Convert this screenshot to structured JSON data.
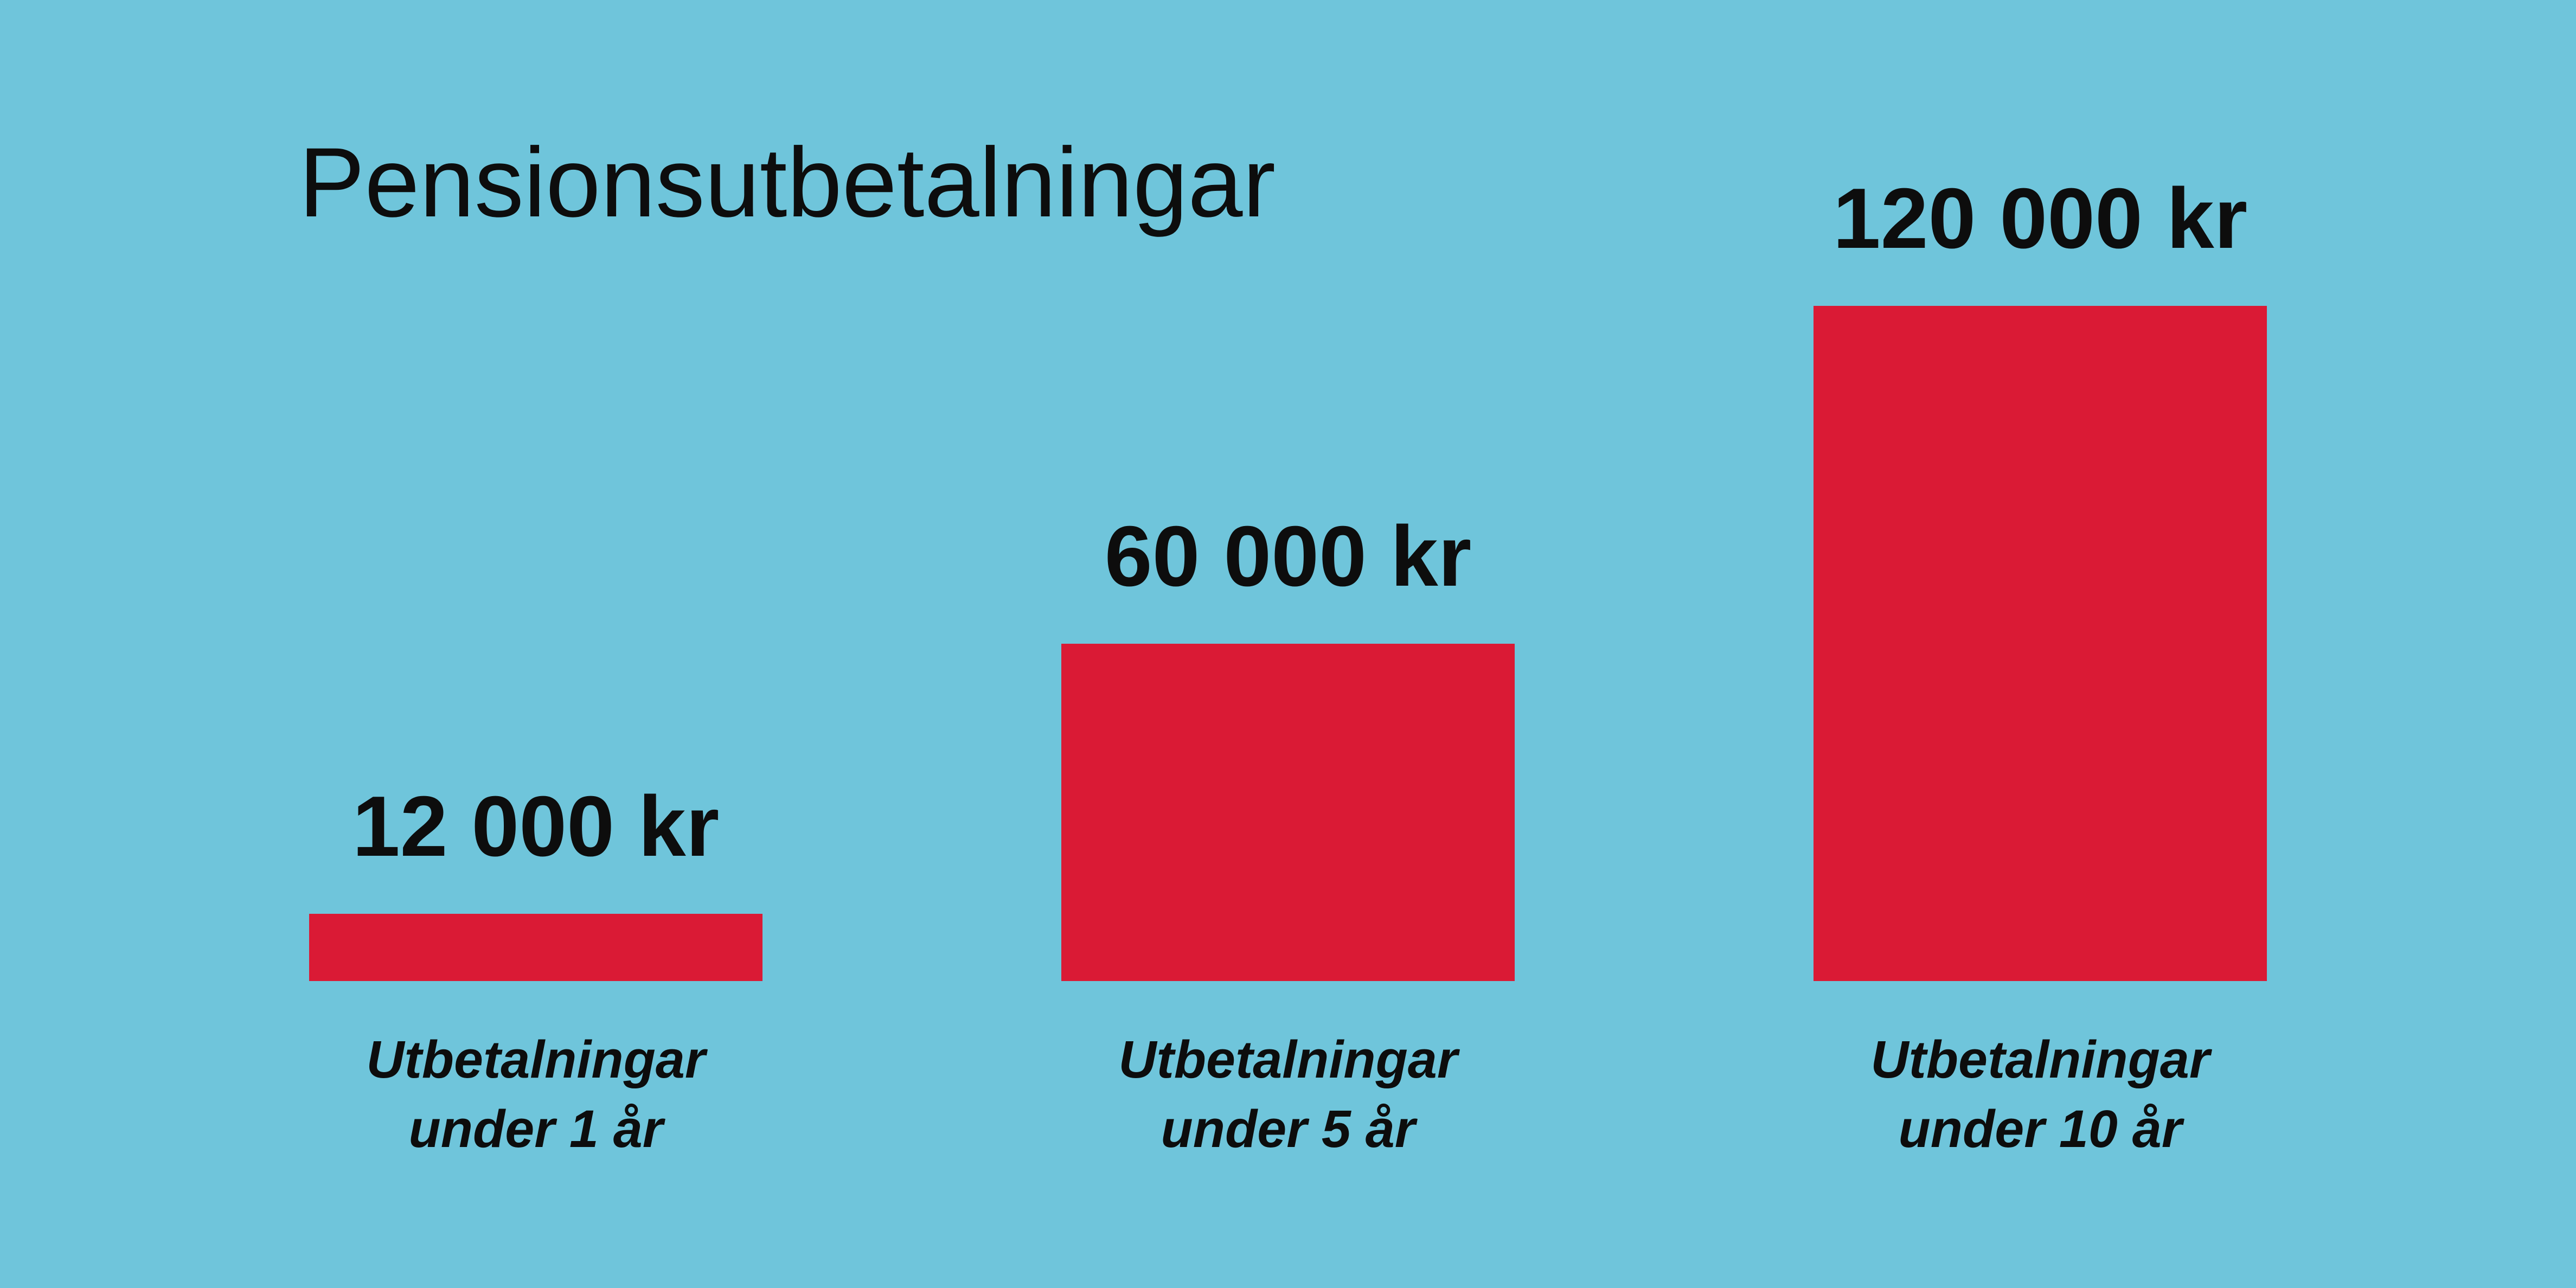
{
  "chart_data": {
    "type": "bar",
    "title": "Pensionsutbetalningar",
    "categories": [
      "Utbetalningar under 1 år",
      "Utbetalningar under 5 år",
      "Utbetalningar under 10 år"
    ],
    "values": [
      12000,
      60000,
      120000
    ],
    "value_labels": [
      "12 000 kr",
      "60 000 kr",
      "120 000 kr"
    ],
    "color": "#da1a35"
  }
}
